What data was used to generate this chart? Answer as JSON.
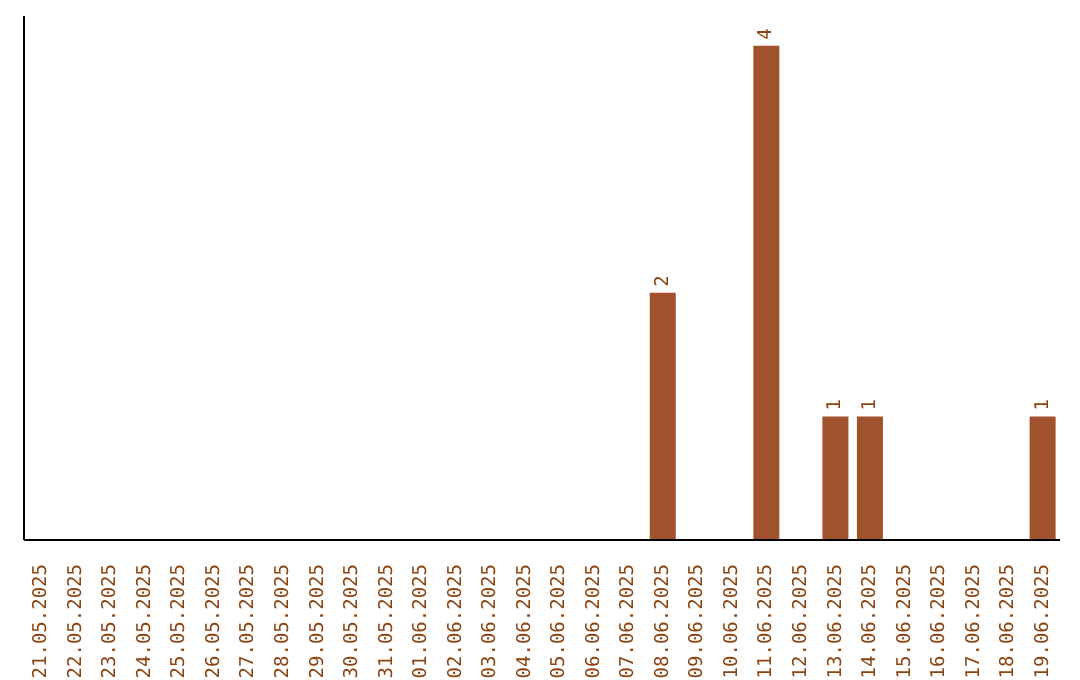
{
  "chart_data": {
    "type": "bar",
    "categories": [
      "21.05.2025",
      "22.05.2025",
      "23.05.2025",
      "24.05.2025",
      "25.05.2025",
      "26.05.2025",
      "27.05.2025",
      "28.05.2025",
      "29.05.2025",
      "30.05.2025",
      "31.05.2025",
      "01.06.2025",
      "02.06.2025",
      "03.06.2025",
      "04.06.2025",
      "05.06.2025",
      "06.06.2025",
      "07.06.2025",
      "08.06.2025",
      "09.06.2025",
      "10.06.2025",
      "11.06.2025",
      "12.06.2025",
      "13.06.2025",
      "14.06.2025",
      "15.06.2025",
      "16.06.2025",
      "17.06.2025",
      "18.06.2025",
      "19.06.2025"
    ],
    "values": [
      null,
      null,
      null,
      null,
      null,
      null,
      null,
      null,
      null,
      null,
      null,
      null,
      null,
      null,
      null,
      null,
      null,
      null,
      2,
      null,
      null,
      4,
      null,
      1,
      1,
      null,
      null,
      null,
      null,
      1
    ],
    "data_labels": true,
    "color": "#a0522d",
    "grid": false,
    "legend": false
  }
}
